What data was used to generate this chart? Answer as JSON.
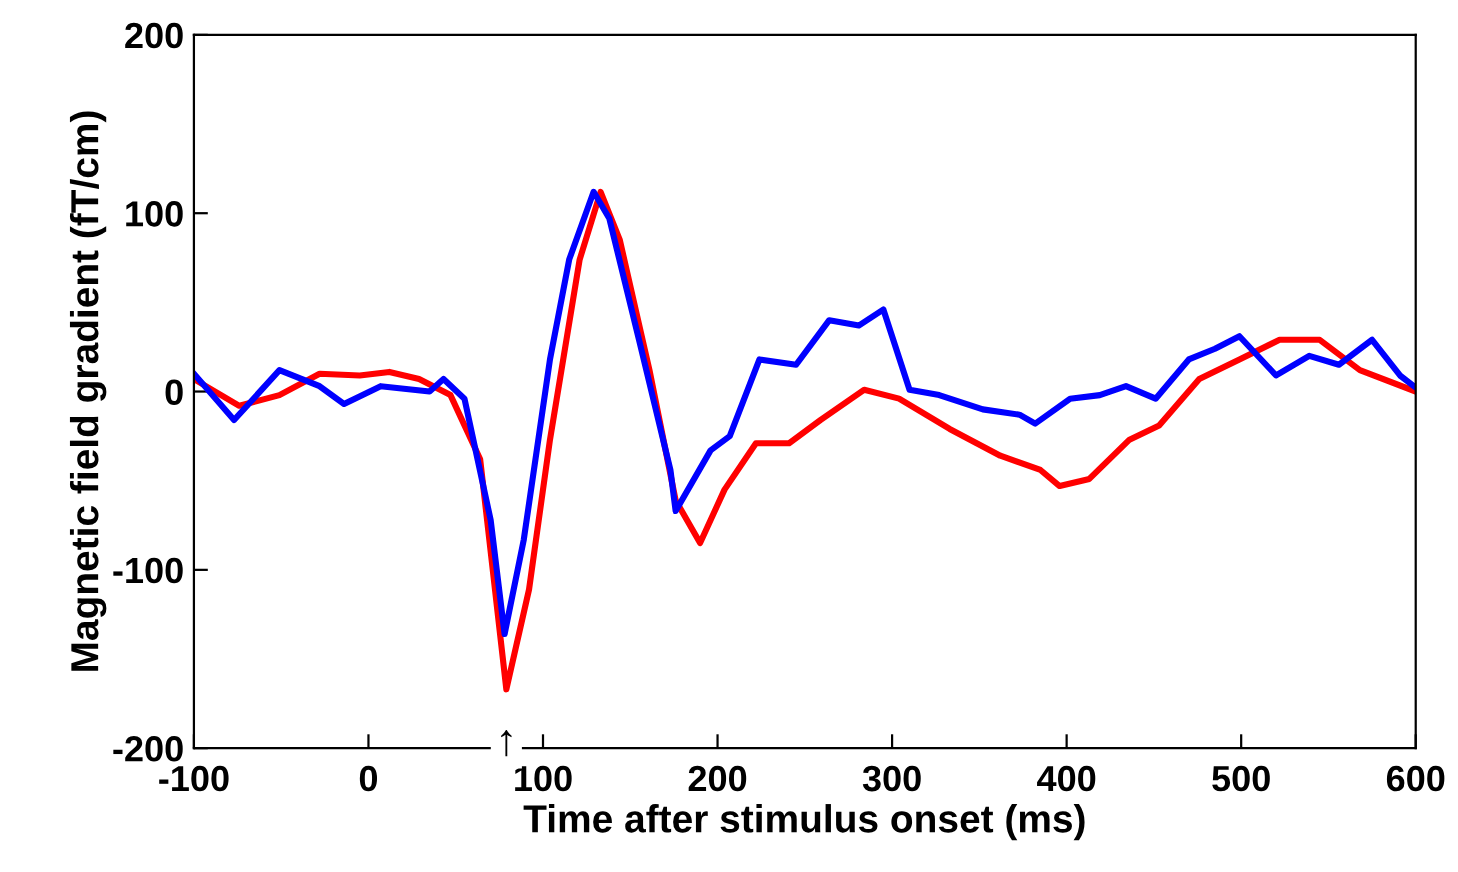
{
  "chart_data": {
    "type": "line",
    "xlabel": "Time after stimulus onset (ms)",
    "ylabel": "Magnetic field gradient (fT/cm)",
    "xlim": [
      -100,
      600
    ],
    "ylim": [
      -200,
      200
    ],
    "xticks": [
      -100,
      0,
      100,
      200,
      300,
      400,
      500,
      600
    ],
    "yticks": [
      -200,
      -100,
      0,
      100,
      200
    ],
    "grid": false,
    "legend": false,
    "line_style": "solid",
    "marker": "none",
    "annotations": [
      {
        "text": "↑",
        "x": 79,
        "y": -167
      }
    ],
    "series": [
      {
        "color": "#ff0000",
        "x": [
          -100,
          -74,
          -51,
          -28,
          -5,
          12,
          29,
          47,
          64,
          79,
          92,
          104,
          121,
          133,
          144,
          161,
          176,
          190,
          204,
          222,
          241,
          259,
          284,
          304,
          333,
          362,
          385,
          396,
          413,
          436,
          453,
          476,
          499,
          522,
          545,
          568,
          600
        ],
        "values": [
          7,
          -8,
          -2,
          10,
          9,
          11,
          7,
          -2,
          -38,
          -167,
          -111,
          -27,
          74,
          112,
          85,
          12,
          -61,
          -85,
          -55,
          -29,
          -29,
          -16,
          1,
          -4,
          -21,
          -36,
          -44,
          -53,
          -49,
          -27,
          -19,
          7,
          18,
          29,
          29,
          12,
          0
        ]
      },
      {
        "color": "#0000ff",
        "x": [
          -100,
          -77,
          -51,
          -28,
          -14,
          7,
          35,
          43,
          55,
          70,
          78,
          89,
          104,
          115,
          129,
          138,
          155,
          173,
          176,
          196,
          207,
          224,
          245,
          264,
          281,
          295,
          310,
          327,
          352,
          373,
          382,
          402,
          419,
          434,
          451,
          470,
          485,
          499,
          520,
          539,
          556,
          575,
          591,
          599
        ],
        "values": [
          10,
          -16,
          12,
          3,
          -7,
          3,
          0,
          7,
          -4,
          -72,
          -136,
          -83,
          18,
          74,
          112,
          97,
          29,
          -44,
          -67,
          -33,
          -25,
          18,
          15,
          40,
          37,
          46,
          1,
          -2,
          -10,
          -13,
          -18,
          -4,
          -2,
          3,
          -4,
          18,
          24,
          31,
          9,
          20,
          15,
          29,
          9,
          3
        ]
      }
    ]
  }
}
